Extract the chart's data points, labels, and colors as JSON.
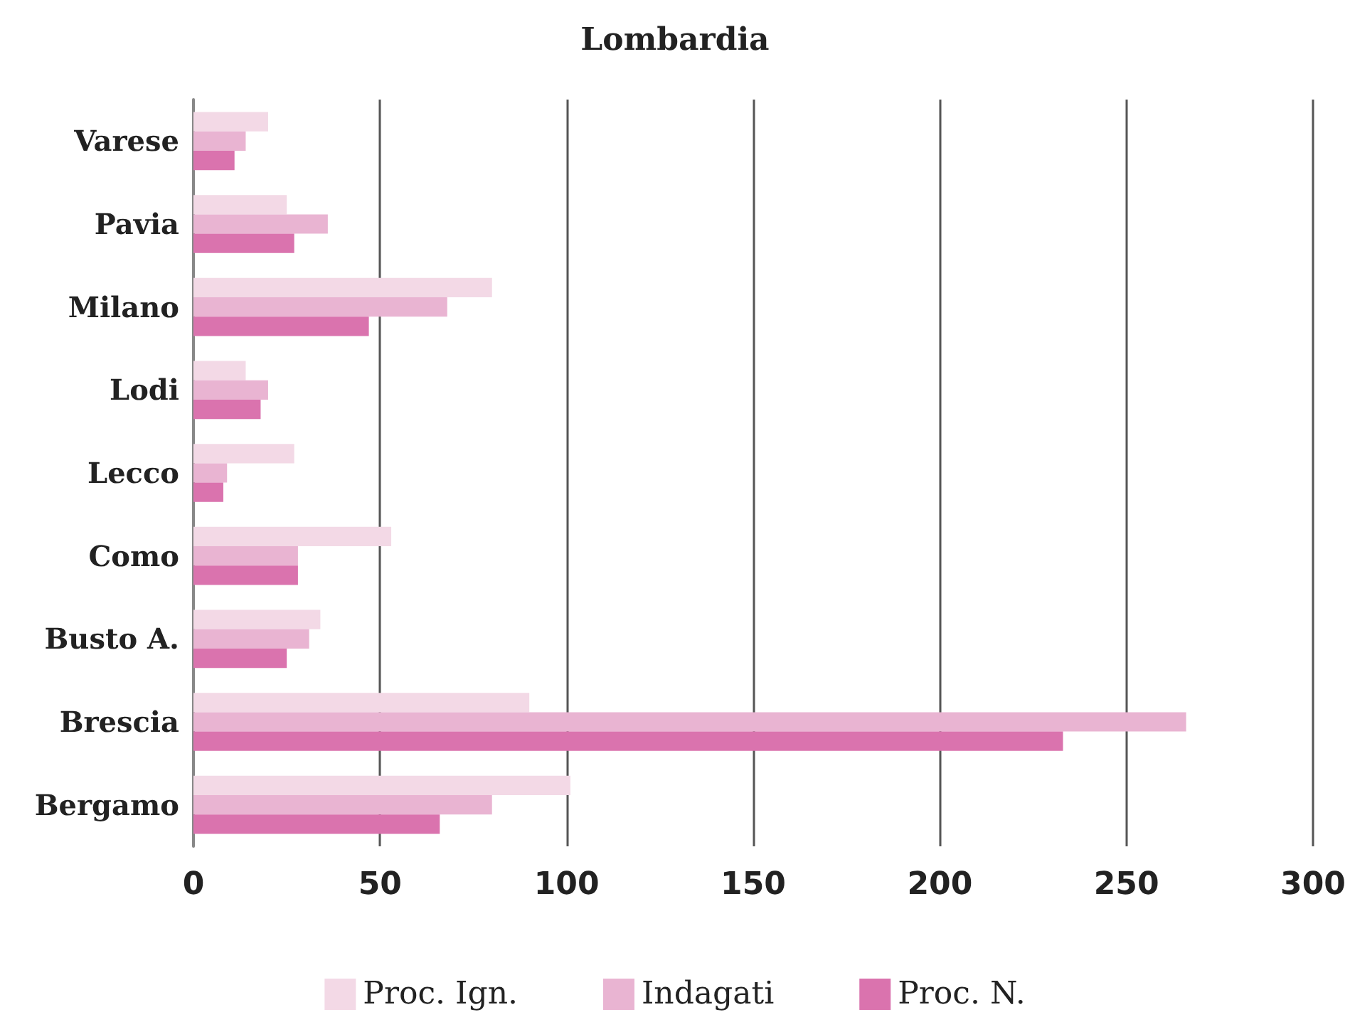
{
  "chart_data": {
    "type": "bar",
    "orientation": "horizontal",
    "title": "Lombardia",
    "categories": [
      "Varese",
      "Pavia",
      "Milano",
      "Lodi",
      "Lecco",
      "Como",
      "Busto A.",
      "Brescia",
      "Bergamo"
    ],
    "series": [
      {
        "name": "Proc. Ign.",
        "color": "#f3d9e6",
        "values": [
          20,
          25,
          80,
          14,
          27,
          53,
          34,
          90,
          101
        ]
      },
      {
        "name": "Indagati",
        "color": "#e9b4d2",
        "values": [
          14,
          36,
          68,
          20,
          9,
          28,
          31,
          266,
          80
        ]
      },
      {
        "name": "Proc. N.",
        "color": "#da73ae",
        "values": [
          11,
          27,
          47,
          18,
          8,
          28,
          25,
          233,
          66
        ]
      }
    ],
    "xlim": [
      0,
      300
    ],
    "xticks": [
      0,
      50,
      100,
      150,
      200,
      250,
      300
    ],
    "grid": "x",
    "legend": "bottom"
  }
}
